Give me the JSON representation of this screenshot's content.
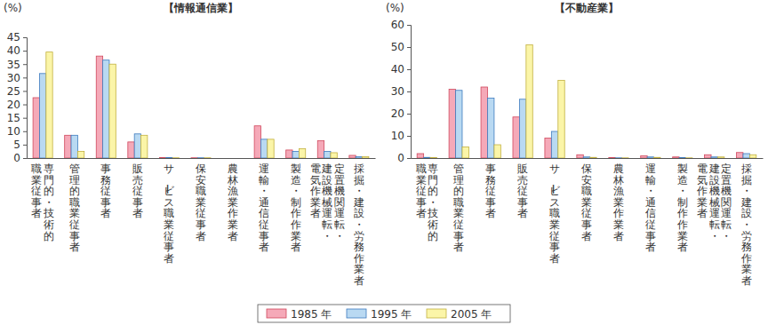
{
  "chart_data": [
    {
      "type": "bar",
      "title": "【情報通信業】",
      "y_label": "(%)",
      "categories": [
        "専門的・技術的職業従事者",
        "管理的職業従事者",
        "事務従事者",
        "販売従事者",
        "サービス職業従事者",
        "保安職業従事者",
        "農林漁業作業者",
        "運輸・通信従事者",
        "製造・制作作業者",
        "定置機関運転・建設機械運転・電気作業者",
        "採掘・建設・労務作業者"
      ],
      "series": [
        {
          "name": "1985 年",
          "color": "#f5a9b8",
          "values": [
            22.5,
            8.5,
            38,
            6,
            0.2,
            0.1,
            0,
            12,
            3,
            6.5,
            1
          ]
        },
        {
          "name": "1995 年",
          "color": "#b9d9f2",
          "values": [
            31.5,
            8.5,
            36.5,
            9,
            0.2,
            0.1,
            0,
            7,
            2.5,
            2.5,
            0.5
          ]
        },
        {
          "name": "2005 年",
          "color": "#fbf5a8",
          "values": [
            39.5,
            2.5,
            35,
            8.5,
            0.1,
            0.1,
            0,
            7,
            3.5,
            2,
            0.5
          ]
        }
      ],
      "ylim": [
        0,
        45
      ],
      "yticks": [
        0,
        5,
        10,
        15,
        20,
        25,
        30,
        35,
        40,
        45
      ],
      "grid": false,
      "legend": "bottom"
    },
    {
      "type": "bar",
      "title": "【不動産業】",
      "y_label": "(%)",
      "categories": [
        "専門的・技術的職業従事者",
        "管理的職業従事者",
        "事務従事者",
        "販売従事者",
        "サービス職業従事者",
        "保安職業従事者",
        "農林漁業作業者",
        "運輸・通信従事者",
        "製造・制作作業者",
        "定置機関運転・建設機械運転・電気作業者",
        "採掘・建設・労務作業者"
      ],
      "series": [
        {
          "name": "1985 年",
          "color": "#f5a9b8",
          "values": [
            2,
            31,
            32,
            18.5,
            9,
            1.5,
            0.2,
            1,
            0.5,
            1.5,
            2.5
          ]
        },
        {
          "name": "1995 年",
          "color": "#b9d9f2",
          "values": [
            0.3,
            30.5,
            27,
            26.5,
            12,
            0.5,
            0.1,
            0.5,
            0.2,
            0.5,
            2
          ]
        },
        {
          "name": "2005 年",
          "color": "#fbf5a8",
          "values": [
            0.2,
            5,
            6,
            51,
            35,
            0.3,
            0.1,
            0.3,
            0.1,
            0.5,
            1.5
          ]
        }
      ],
      "ylim": [
        0,
        60
      ],
      "yticks": [
        0,
        10,
        20,
        30,
        40,
        50,
        60
      ],
      "grid": false
    }
  ]
}
